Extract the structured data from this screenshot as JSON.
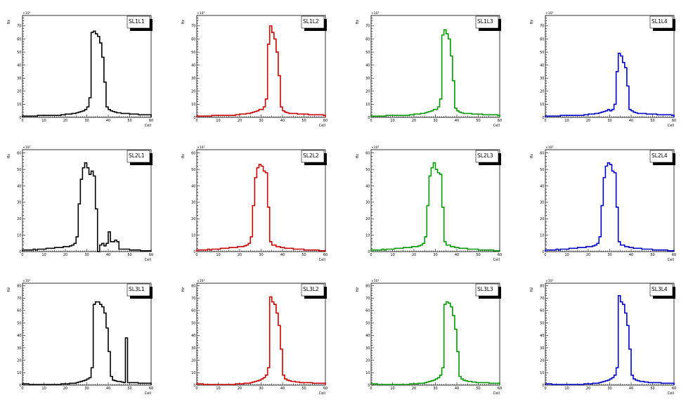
{
  "colors": {
    "L1": "#000000",
    "L2": "#cc0000",
    "L3": "#009900",
    "L4": "#0000cc"
  },
  "chart_data": [
    {
      "type": "bar",
      "title": "SL1L1",
      "color": "#000000",
      "xlabel": "Cell",
      "ylabel": "Hz",
      "y_multiplier": "×10³",
      "xlim": [
        0,
        60
      ],
      "ylim": [
        0,
        78
      ],
      "x_ticks": [
        0,
        10,
        20,
        30,
        40,
        50,
        60
      ],
      "y_ticks": [
        0,
        10,
        20,
        30,
        40,
        50,
        60,
        70
      ],
      "legend": "top-right",
      "values": [
        1,
        1,
        1,
        1,
        1,
        1,
        1,
        1.5,
        1.5,
        1.5,
        1.5,
        1.5,
        1.5,
        1.5,
        1.5,
        1.5,
        1.5,
        1.5,
        2,
        2,
        2.5,
        2.5,
        2.5,
        3,
        3,
        3.5,
        4,
        4.5,
        5,
        6,
        8,
        15,
        65,
        66,
        64,
        62,
        57,
        46,
        27,
        8,
        6,
        5,
        4.5,
        4,
        3.5,
        3.5,
        3,
        3,
        3,
        3,
        2.5,
        2.5,
        2.5,
        2.5,
        2,
        2,
        2,
        2,
        2,
        2
      ]
    },
    {
      "type": "bar",
      "title": "SL1L2",
      "color": "#cc0000",
      "xlabel": "Cell",
      "ylabel": "Hz",
      "y_multiplier": "×10³",
      "xlim": [
        0,
        60
      ],
      "ylim": [
        0,
        78
      ],
      "x_ticks": [
        0,
        10,
        20,
        30,
        40,
        50,
        60
      ],
      "y_ticks": [
        0,
        10,
        20,
        30,
        40,
        50,
        60,
        70
      ],
      "legend": "top-right",
      "values": [
        1,
        1,
        1,
        1,
        1,
        1,
        1,
        1.5,
        1.5,
        1.5,
        1.5,
        1.5,
        1.5,
        1.5,
        1.5,
        1.5,
        1.5,
        1.5,
        2,
        2,
        2.5,
        2.5,
        2.5,
        3,
        3,
        3.5,
        4,
        4.5,
        5,
        6,
        6,
        8,
        14,
        56,
        70,
        65,
        60,
        50,
        32,
        8,
        5,
        4,
        3.5,
        3,
        3,
        3,
        3,
        2.5,
        2.5,
        2.5,
        2.5,
        2.5,
        2,
        2,
        2,
        2,
        2,
        2,
        2,
        1.5
      ]
    },
    {
      "type": "bar",
      "title": "SL1L3",
      "color": "#009900",
      "xlabel": "Cell",
      "ylabel": "Hz",
      "y_multiplier": "×10³",
      "xlim": [
        0,
        60
      ],
      "ylim": [
        0,
        78
      ],
      "x_ticks": [
        0,
        10,
        20,
        30,
        40,
        50,
        60
      ],
      "y_ticks": [
        0,
        10,
        20,
        30,
        40,
        50,
        60,
        70
      ],
      "legend": "top-right",
      "values": [
        1,
        1,
        1,
        1,
        1,
        1,
        1,
        1.5,
        1.5,
        1.5,
        1.5,
        1.5,
        1.5,
        1.5,
        1.5,
        1.5,
        1.5,
        1.5,
        2,
        2,
        2.5,
        2.5,
        2.5,
        3,
        3,
        3.5,
        4,
        4.5,
        5,
        6,
        6,
        8,
        14,
        63,
        67,
        64,
        60,
        47,
        28,
        7,
        5,
        4,
        3.5,
        3,
        3,
        3,
        3,
        2.5,
        2.5,
        2.5,
        2.5,
        2.5,
        2,
        2,
        2,
        2,
        2,
        2,
        2,
        1.5
      ]
    },
    {
      "type": "bar",
      "title": "SL1L4",
      "color": "#0000cc",
      "xlabel": "Cell",
      "ylabel": "Hz",
      "y_multiplier": "×10³",
      "xlim": [
        0,
        60
      ],
      "ylim": [
        0,
        78
      ],
      "x_ticks": [
        0,
        10,
        20,
        30,
        40,
        50,
        60
      ],
      "y_ticks": [
        0,
        10,
        20,
        30,
        40,
        50,
        60,
        70
      ],
      "legend": "top-right",
      "values": [
        1,
        1,
        1,
        1,
        1,
        1,
        1,
        1.5,
        1.5,
        1.5,
        1.5,
        1.5,
        1.5,
        1.5,
        1.5,
        1.5,
        1.5,
        1.5,
        2,
        2,
        2.5,
        2.5,
        2.5,
        3,
        3,
        3.5,
        4,
        4.5,
        5,
        6,
        5,
        6,
        10,
        35,
        49,
        47,
        42,
        38,
        24,
        6,
        5,
        4,
        3.5,
        3,
        3,
        3,
        3,
        2.5,
        2.5,
        2.5,
        2.5,
        2.5,
        2,
        2,
        2,
        2,
        2,
        2,
        2,
        1.5
      ]
    },
    {
      "type": "bar",
      "title": "SL2L1",
      "color": "#000000",
      "xlabel": "Cell",
      "ylabel": "Hz",
      "y_multiplier": "×10³",
      "xlim": [
        0,
        60
      ],
      "ylim": [
        0,
        62
      ],
      "x_ticks": [
        0,
        10,
        20,
        30,
        40,
        50,
        60
      ],
      "y_ticks": [
        0,
        10,
        20,
        30,
        40,
        50,
        60
      ],
      "legend": "top-right",
      "values": [
        1,
        1,
        1,
        1,
        1,
        1.5,
        1,
        1.5,
        1.5,
        1.5,
        1.5,
        2,
        2,
        2,
        2,
        2.5,
        2.5,
        2.5,
        2.5,
        3,
        3,
        3,
        3.5,
        4,
        5,
        9,
        29,
        44,
        51,
        54,
        51,
        47,
        49,
        46,
        26,
        0,
        4,
        5,
        3.5,
        5,
        12,
        6,
        6,
        7,
        6,
        1.5,
        1.5,
        1.5,
        1.5,
        1.5,
        1,
        1,
        1,
        1,
        1,
        0.5,
        0.5,
        0.5,
        0.5,
        0.5
      ]
    },
    {
      "type": "bar",
      "title": "SL2L2",
      "color": "#cc0000",
      "xlabel": "Cell",
      "ylabel": "Hz",
      "y_multiplier": "×10³",
      "xlim": [
        0,
        60
      ],
      "ylim": [
        0,
        62
      ],
      "x_ticks": [
        0,
        10,
        20,
        30,
        40,
        50,
        60
      ],
      "y_ticks": [
        0,
        10,
        20,
        30,
        40,
        50,
        60
      ],
      "legend": "top-right",
      "values": [
        1,
        1,
        1,
        1,
        1,
        1.5,
        1,
        1.5,
        1.5,
        1.5,
        1.5,
        2,
        2,
        2,
        2,
        2.5,
        2.5,
        2.5,
        2.5,
        3,
        3,
        3,
        3.5,
        4,
        5,
        9,
        28,
        45,
        51,
        53,
        52,
        49,
        48,
        27,
        6,
        4,
        4,
        3,
        3,
        2.5,
        2.5,
        2,
        2,
        2,
        2,
        1.5,
        1.5,
        1.5,
        1.5,
        1.5,
        1,
        1,
        1,
        1,
        1,
        1,
        1,
        0.5,
        0.5,
        0.5
      ]
    },
    {
      "type": "bar",
      "title": "SL2L3",
      "color": "#009900",
      "xlabel": "Cell",
      "ylabel": "Hz",
      "y_multiplier": "×10³",
      "xlim": [
        0,
        60
      ],
      "ylim": [
        0,
        62
      ],
      "x_ticks": [
        0,
        10,
        20,
        30,
        40,
        50,
        60
      ],
      "y_ticks": [
        0,
        10,
        20,
        30,
        40,
        50,
        60
      ],
      "legend": "top-right",
      "values": [
        1,
        1,
        1,
        1,
        1,
        1.5,
        1,
        1.5,
        1.5,
        1.5,
        1.5,
        2,
        2,
        2,
        2,
        2.5,
        2.5,
        2.5,
        2.5,
        3,
        3,
        3,
        3.5,
        4,
        5,
        9,
        28,
        46,
        51,
        54,
        50,
        48,
        47,
        27,
        6,
        4,
        4,
        3,
        3,
        2.5,
        2.5,
        2,
        2,
        2,
        2,
        1.5,
        1.5,
        1.5,
        1.5,
        1.5,
        1,
        1,
        1,
        1,
        1,
        1,
        1,
        0.5,
        0.5,
        0.5
      ]
    },
    {
      "type": "bar",
      "title": "SL2L4",
      "color": "#0000cc",
      "xlabel": "Cell",
      "ylabel": "Hz",
      "y_multiplier": "×10³",
      "xlim": [
        0,
        60
      ],
      "ylim": [
        0,
        62
      ],
      "x_ticks": [
        0,
        10,
        20,
        30,
        40,
        50,
        60
      ],
      "y_ticks": [
        0,
        10,
        20,
        30,
        40,
        50,
        60
      ],
      "legend": "top-right",
      "values": [
        1,
        1,
        1,
        1,
        1,
        1.5,
        1,
        1.5,
        1.5,
        1.5,
        1.5,
        2,
        2,
        2,
        2,
        2.5,
        2.5,
        2.5,
        2.5,
        3,
        3,
        3,
        3.5,
        4,
        5,
        9,
        28,
        45,
        52,
        54,
        53,
        49,
        48,
        27,
        6,
        4,
        4,
        3,
        3,
        2.5,
        2.5,
        2,
        2,
        2,
        2,
        1.5,
        1.5,
        1.5,
        1.5,
        1.5,
        1,
        1,
        1,
        1,
        1,
        1,
        1,
        0.5,
        0.5,
        0.5
      ]
    },
    {
      "type": "bar",
      "title": "SL3L1",
      "color": "#000000",
      "xlabel": "Cell",
      "ylabel": "Hz",
      "y_multiplier": "×10³",
      "xlim": [
        0,
        60
      ],
      "ylim": [
        0,
        82
      ],
      "x_ticks": [
        0,
        10,
        20,
        30,
        40,
        50,
        60
      ],
      "y_ticks": [
        0,
        10,
        20,
        30,
        40,
        50,
        60,
        70,
        80
      ],
      "legend": "top-right",
      "values": [
        1,
        1,
        1,
        0.5,
        0.5,
        0.5,
        0.5,
        0.5,
        0.5,
        0.5,
        0.5,
        0.5,
        0.5,
        0.5,
        0.5,
        0.5,
        0.5,
        0.5,
        1,
        1,
        1,
        1,
        1.5,
        1.5,
        1.5,
        2,
        2.5,
        3,
        3.5,
        4,
        5,
        6,
        14,
        65,
        67,
        67,
        65,
        63,
        58,
        46,
        27,
        7,
        4,
        3.5,
        3,
        3,
        2.5,
        2,
        38,
        2,
        2,
        2,
        2,
        2,
        1.5,
        1.5,
        1.5,
        1.5,
        1.5,
        1.5
      ]
    },
    {
      "type": "bar",
      "title": "SL3L2",
      "color": "#cc0000",
      "xlabel": "Cell",
      "ylabel": "Hz",
      "y_multiplier": "×10³",
      "xlim": [
        0,
        60
      ],
      "ylim": [
        0,
        82
      ],
      "x_ticks": [
        0,
        10,
        20,
        30,
        40,
        50,
        60
      ],
      "y_ticks": [
        0,
        10,
        20,
        30,
        40,
        50,
        60,
        70,
        80
      ],
      "legend": "top-right",
      "values": [
        1,
        1,
        1,
        0.5,
        0.5,
        0.5,
        0.5,
        0.5,
        0.5,
        0.5,
        0.5,
        0.5,
        0.5,
        0.5,
        0.5,
        0.5,
        0.5,
        0.5,
        1,
        1,
        1,
        1,
        1.5,
        1.5,
        1.5,
        2,
        2.5,
        3,
        3.5,
        4,
        5,
        6,
        8,
        14,
        71,
        67,
        65,
        58,
        48,
        29,
        8,
        5,
        4,
        3.5,
        3,
        3,
        2.5,
        2.5,
        2,
        2,
        2,
        2,
        2,
        2,
        1.5,
        1.5,
        1.5,
        1.5,
        1.5,
        1.5
      ]
    },
    {
      "type": "bar",
      "title": "SL3L3",
      "color": "#009900",
      "xlabel": "Cell",
      "ylabel": "Hz",
      "y_multiplier": "×10³",
      "xlim": [
        0,
        60
      ],
      "ylim": [
        0,
        82
      ],
      "x_ticks": [
        0,
        10,
        20,
        30,
        40,
        50,
        60
      ],
      "y_ticks": [
        0,
        10,
        20,
        30,
        40,
        50,
        60,
        70,
        80
      ],
      "legend": "top-right",
      "values": [
        1,
        1,
        1,
        0.5,
        0.5,
        0.5,
        0.5,
        0.5,
        0.5,
        0.5,
        0.5,
        0.5,
        0.5,
        0.5,
        0.5,
        0.5,
        0.5,
        0.5,
        1,
        1,
        1,
        1,
        1.5,
        1.5,
        1.5,
        2,
        2.5,
        3,
        3.5,
        4,
        5,
        6,
        8,
        14,
        65,
        67,
        66,
        63,
        56,
        45,
        27,
        7,
        5,
        4,
        3.5,
        3,
        3,
        2.5,
        2.5,
        2,
        2,
        2,
        2,
        2,
        2,
        1.5,
        1.5,
        1.5,
        1.5,
        1.5
      ]
    },
    {
      "type": "bar",
      "title": "SL3L4",
      "color": "#0000cc",
      "xlabel": "Cell",
      "ylabel": "Hz",
      "y_multiplier": "×10³",
      "xlim": [
        0,
        60
      ],
      "ylim": [
        0,
        82
      ],
      "x_ticks": [
        0,
        10,
        20,
        30,
        40,
        50,
        60
      ],
      "y_ticks": [
        0,
        10,
        20,
        30,
        40,
        50,
        60,
        70,
        80
      ],
      "legend": "top-right",
      "values": [
        1,
        1,
        1,
        0.5,
        0.5,
        0.5,
        0.5,
        0.5,
        0.5,
        0.5,
        0.5,
        0.5,
        0.5,
        0.5,
        0.5,
        0.5,
        0.5,
        0.5,
        1,
        1,
        1,
        1,
        1.5,
        1.5,
        1.5,
        2,
        2.5,
        3,
        3.5,
        4,
        5,
        6,
        8,
        14,
        72,
        67,
        65,
        58,
        48,
        29,
        8,
        5,
        4,
        3.5,
        3,
        3,
        2.5,
        2.5,
        2,
        2,
        2,
        2,
        2,
        2,
        1.5,
        1.5,
        1.5,
        1.5,
        1.5,
        1.5
      ]
    }
  ]
}
